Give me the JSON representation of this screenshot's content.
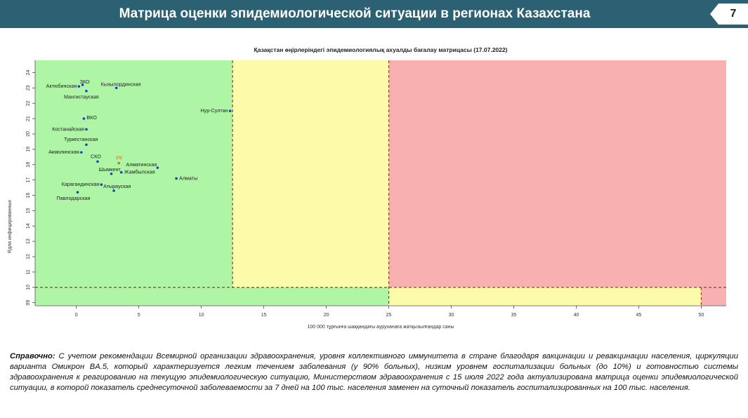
{
  "header": {
    "title": "Матрица оценки эпидемиологической ситуации в регионах Казахстана",
    "page_number": "7"
  },
  "note": {
    "label": "Справочно:",
    "text": "С учетом рекомендации Всемирной организации здравоохранения, уровня коллективного иммунитета в стране благодаря вакцинации и ревакцинации населения, циркуляции варианта Омикрон BA.5, который характеризуется легким течением заболевания (у 90% больных), низким уровнем госпитализации больных (до 10%) и готовностью системы здравоохранения к реагированию на текущую эпидемиологическую ситуацию, Министерством здравоохранения с 15 июля 2022 года актуализирована матрица оценки эпидемиологической ситуации, в которой показатель  среднесуточной заболеваемости за 7 дней на 100 тыс. населения заменен на  суточный показатель госпитализированных на 100 тыс. населения."
  },
  "colors": {
    "header_bg": "#2b6172",
    "green_zone": "#aef5a6",
    "yellow_zone": "#fbfba9",
    "red_zone": "#f9b0b0",
    "point": "#1f3ec4",
    "highlight_point": "#d2701c",
    "threshold_line": "#a33a1f"
  },
  "chart_data": {
    "type": "scatter",
    "title": "Қазақстан өңірлеріндегі эпидемиологиялық ахуалды бағалау матрицасы  (17.07.2022)",
    "xlabel": "100 000 тұрғынға шаққандағы ауруханаға жатқызылғандар саны",
    "ylabel": "Rдля инфицированных",
    "x_ticks": [
      "0",
      "5",
      "10",
      "15",
      "20",
      "25",
      "30",
      "35",
      "40",
      "45",
      "50"
    ],
    "y_ticks": [
      "09",
      "10",
      "11",
      "12",
      "13",
      "14",
      "15",
      "16",
      "17",
      "18",
      "19",
      "20",
      "21",
      "22",
      "23",
      "24"
    ],
    "xlim": [
      -3.3,
      52
    ],
    "ylim": [
      8.8,
      24.8
    ],
    "zones": [
      {
        "x": [
          -3.3,
          12.5
        ],
        "y": [
          10,
          24.8
        ],
        "color": "green"
      },
      {
        "x": [
          12.5,
          25
        ],
        "y": [
          10,
          24.8
        ],
        "color": "yellow"
      },
      {
        "x": [
          25,
          52
        ],
        "y": [
          10,
          24.8
        ],
        "color": "red"
      },
      {
        "x": [
          -3.3,
          25
        ],
        "y": [
          8.8,
          10
        ],
        "color": "green"
      },
      {
        "x": [
          25,
          50
        ],
        "y": [
          8.8,
          10
        ],
        "color": "yellow"
      },
      {
        "x": [
          50,
          52
        ],
        "y": [
          8.8,
          10
        ],
        "color": "red"
      }
    ],
    "thresholds": {
      "x": [
        12.5,
        25,
        50
      ],
      "y": 10
    },
    "points": [
      {
        "label": "ЗКО",
        "x": 0.5,
        "y": 23.2
      },
      {
        "label": "Актюбинская",
        "x": 0.2,
        "y": 23.1
      },
      {
        "label": "Кызылординская",
        "x": 3.2,
        "y": 23.0
      },
      {
        "label": "Мангистауская",
        "x": 0.8,
        "y": 22.8
      },
      {
        "label": "Нур-Султан",
        "x": 12.3,
        "y": 21.5
      },
      {
        "label": "ВКО",
        "x": 0.6,
        "y": 21.0
      },
      {
        "label": "Костанайская",
        "x": 0.8,
        "y": 20.3
      },
      {
        "label": "Туркестанская",
        "x": 0.8,
        "y": 19.3
      },
      {
        "label": "Акмолинская",
        "x": 0.4,
        "y": 18.8
      },
      {
        "label": "СКО",
        "x": 1.7,
        "y": 18.2
      },
      {
        "label": "РК",
        "x": 3.4,
        "y": 18.1,
        "highlight": true
      },
      {
        "label": "Алматинская",
        "x": 6.5,
        "y": 17.8
      },
      {
        "label": "Шымкент",
        "x": 2.8,
        "y": 17.4
      },
      {
        "label": "Жамбылская",
        "x": 3.6,
        "y": 17.5
      },
      {
        "label": "Алматы",
        "x": 8.0,
        "y": 17.1
      },
      {
        "label": "Карагандинская",
        "x": 2.0,
        "y": 16.7
      },
      {
        "label": "Атырауская",
        "x": 3.0,
        "y": 16.3
      },
      {
        "label": "Павлодарская",
        "x": 0.1,
        "y": 16.2
      }
    ]
  }
}
